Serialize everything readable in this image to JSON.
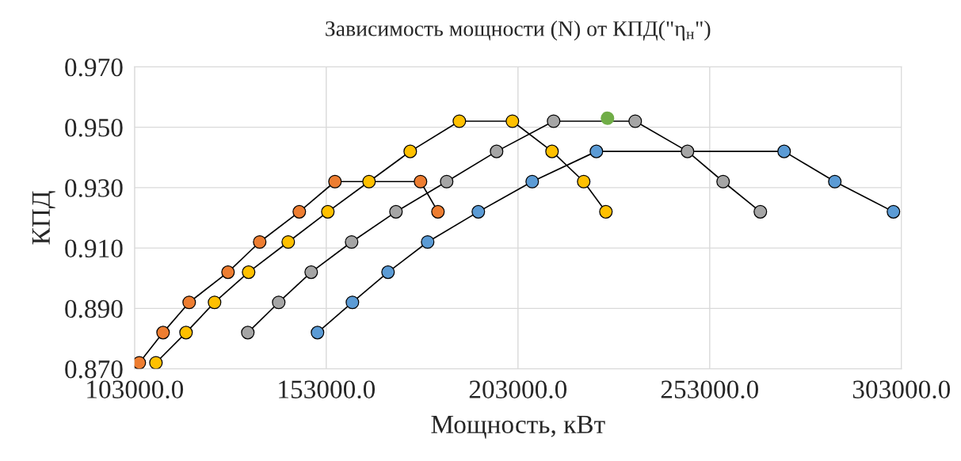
{
  "chart_data": {
    "type": "line",
    "title": "Зависимость мощности (N) от КПД(\"η$_{н}$\")",
    "xlabel": "Мощность, кВт",
    "ylabel": "КПД",
    "xlim": [
      103000,
      303000
    ],
    "xticks": [
      {
        "value": 103000,
        "label": "103000.0"
      },
      {
        "value": 153000,
        "label": "153000.0"
      },
      {
        "value": 203000,
        "label": "203000.0"
      },
      {
        "value": 253000,
        "label": "253000.0"
      },
      {
        "value": 303000,
        "label": "303000.0"
      }
    ],
    "ylim": [
      0.87,
      0.97
    ],
    "yticks": [
      {
        "value": 0.87,
        "label": "0.870"
      },
      {
        "value": 0.89,
        "label": "0.890"
      },
      {
        "value": 0.91,
        "label": "0.910"
      },
      {
        "value": 0.93,
        "label": "0.930"
      },
      {
        "value": 0.95,
        "label": "0.950"
      },
      {
        "value": 0.97,
        "label": "0.970"
      }
    ],
    "grid": true,
    "legend": false,
    "marker": "circle",
    "line_style": "solid",
    "series": [
      {
        "color": "#ed7d31",
        "x": [
          104240,
          110440,
          117250,
          127380,
          135640,
          145970,
          155270,
          177580,
          182130
        ],
        "values": [
          0.872,
          0.882,
          0.892,
          0.902,
          0.912,
          0.922,
          0.932,
          0.932,
          0.922
        ]
      },
      {
        "color": "#ffc000",
        "x": [
          108580,
          116430,
          123870,
          132750,
          143080,
          153410,
          164150,
          174900,
          187710,
          201550,
          211880,
          220140,
          225930
        ],
        "values": [
          0.872,
          0.882,
          0.892,
          0.902,
          0.912,
          0.922,
          0.932,
          0.942,
          0.952,
          0.952,
          0.942,
          0.932,
          0.922
        ]
      },
      {
        "color": "#a5a5a5",
        "x": [
          132540,
          140600,
          149070,
          159610,
          171180,
          184400,
          197420,
          212290,
          233570,
          247210,
          256500,
          266210
        ],
        "values": [
          0.882,
          0.892,
          0.902,
          0.912,
          0.922,
          0.932,
          0.942,
          0.952,
          0.952,
          0.942,
          0.932,
          0.922
        ]
      },
      {
        "color": "#5b9bd5",
        "x": [
          150720,
          159820,
          169110,
          179440,
          192660,
          206710,
          223450,
          272410,
          285630,
          300920
        ],
        "values": [
          0.882,
          0.892,
          0.902,
          0.912,
          0.922,
          0.932,
          0.942,
          0.942,
          0.932,
          0.922
        ]
      },
      {
        "type": "scatter",
        "color": "#70ad47",
        "x": [
          226340
        ],
        "values": [
          0.953
        ]
      }
    ]
  }
}
